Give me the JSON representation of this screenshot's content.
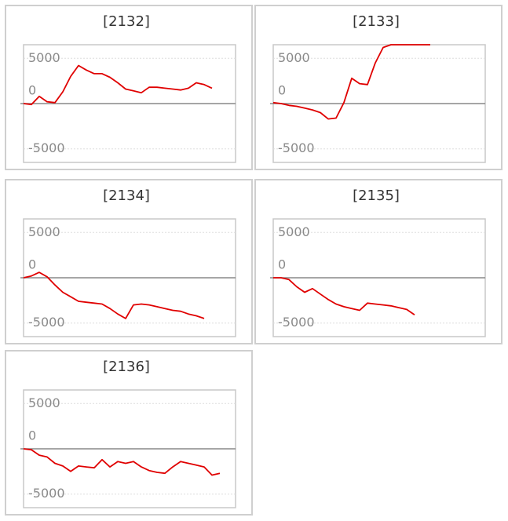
{
  "chart_data": [
    {
      "type": "line",
      "title": "[2132]",
      "color": "#e00000",
      "categories": [
        null,
        null,
        null,
        null,
        null,
        null,
        null,
        null,
        null,
        null,
        null,
        null,
        null,
        null,
        null,
        null,
        null,
        null,
        null,
        null,
        null,
        null,
        null,
        null,
        null,
        null,
        null,
        null
      ],
      "values": [
        0,
        -100,
        800,
        200,
        100,
        1300,
        3000,
        4200,
        3700,
        3300,
        3300,
        2900,
        2300,
        1600,
        1400,
        1200,
        1800,
        1800,
        1700,
        1600,
        1500,
        1700,
        2300,
        2100,
        1700,
        null,
        null,
        null
      ],
      "ylim": [
        -6500,
        6500
      ],
      "yticks": [
        -5000,
        0,
        5000
      ]
    },
    {
      "type": "line",
      "title": "[2133]",
      "color": "#e00000",
      "categories": [
        null,
        null,
        null,
        null,
        null,
        null,
        null,
        null,
        null,
        null,
        null,
        null,
        null,
        null,
        null,
        null,
        null,
        null,
        null,
        null,
        null,
        null,
        null,
        null,
        null,
        null,
        null,
        null
      ],
      "values": [
        100,
        0,
        -200,
        -300,
        -500,
        -700,
        -1000,
        -1700,
        -1600,
        100,
        2800,
        2200,
        2100,
        4500,
        6200,
        6500,
        6500,
        6500,
        6500,
        6500,
        6500,
        null,
        null,
        null,
        null,
        null,
        null,
        null
      ],
      "ylim": [
        -6500,
        6500
      ],
      "yticks": [
        -5000,
        0,
        5000
      ]
    },
    {
      "type": "line",
      "title": "[2134]",
      "color": "#e00000",
      "categories": [
        null,
        null,
        null,
        null,
        null,
        null,
        null,
        null,
        null,
        null,
        null,
        null,
        null,
        null,
        null,
        null,
        null,
        null,
        null,
        null,
        null,
        null,
        null,
        null,
        null,
        null,
        null,
        null
      ],
      "values": [
        0,
        200,
        600,
        100,
        -800,
        -1600,
        -2100,
        -2600,
        -2700,
        -2800,
        -2900,
        -3400,
        -4000,
        -4500,
        -3000,
        -2900,
        -3000,
        -3200,
        -3400,
        -3600,
        -3700,
        -4000,
        -4200,
        -4500,
        null,
        null,
        null,
        null
      ],
      "ylim": [
        -6500,
        6500
      ],
      "yticks": [
        -5000,
        0,
        5000
      ]
    },
    {
      "type": "line",
      "title": "[2135]",
      "color": "#e00000",
      "categories": [
        null,
        null,
        null,
        null,
        null,
        null,
        null,
        null,
        null,
        null,
        null,
        null,
        null,
        null,
        null,
        null,
        null,
        null,
        null,
        null,
        null,
        null,
        null,
        null,
        null,
        null,
        null,
        null
      ],
      "values": [
        0,
        0,
        -200,
        -1000,
        -1600,
        -1200,
        -1800,
        -2400,
        -2900,
        -3200,
        -3400,
        -3600,
        -2800,
        -2900,
        -3000,
        -3100,
        -3300,
        -3500,
        -4100,
        null,
        null,
        null,
        null,
        null,
        null,
        null,
        null,
        null
      ],
      "ylim": [
        -6500,
        6500
      ],
      "yticks": [
        -5000,
        0,
        5000
      ]
    },
    {
      "type": "line",
      "title": "[2136]",
      "color": "#e00000",
      "categories": [
        null,
        null,
        null,
        null,
        null,
        null,
        null,
        null,
        null,
        null,
        null,
        null,
        null,
        null,
        null,
        null,
        null,
        null,
        null,
        null,
        null,
        null,
        null,
        null,
        null,
        null,
        null,
        null
      ],
      "values": [
        0,
        -100,
        -700,
        -900,
        -1600,
        -1900,
        -2500,
        -1900,
        -2000,
        -2100,
        -1200,
        -2000,
        -1400,
        -1600,
        -1400,
        -2000,
        -2400,
        -2600,
        -2700,
        -2000,
        -1400,
        -1600,
        -1800,
        -2000,
        -2900,
        -2700,
        null,
        null
      ],
      "ylim": [
        -6500,
        6500
      ],
      "yticks": [
        -5000,
        0,
        5000
      ]
    }
  ]
}
